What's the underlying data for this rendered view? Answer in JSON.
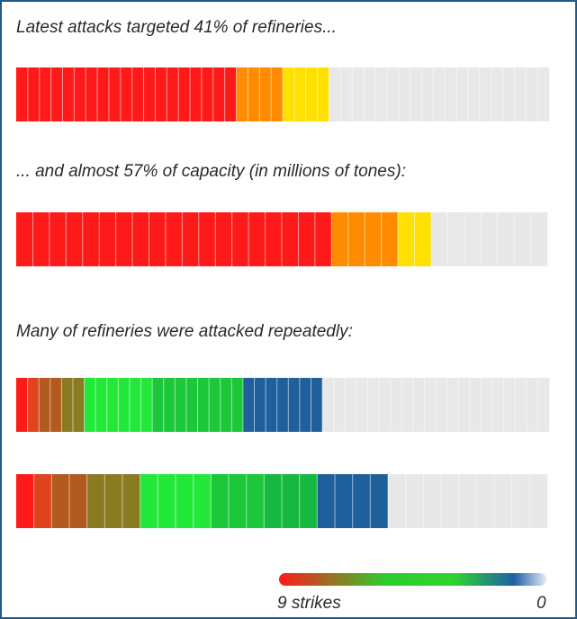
{
  "headings": {
    "h1": "Latest attacks targeted 41% of refineries...",
    "h2": "... and almost 57% of capacity (in millions of tones):",
    "h3": "Many of refineries were attacked repeatedly:"
  },
  "legend": {
    "left_label": "9 strikes",
    "right_label": "0",
    "colors": [
      "#ff1a1a",
      "#2ecc2e",
      "#2fd42f",
      "#1e5fa6",
      "#e6ecf2"
    ]
  },
  "colors": {
    "red": "#ff1a1a",
    "orange": "#ff8c00",
    "yellow": "#ffe000",
    "gray": "#e8e8e8",
    "green_bright": "#22e83a",
    "green_mid": "#1cc83a",
    "blue": "#1f5f9c",
    "frame": "#1f5a8a"
  },
  "chart_data": [
    {
      "type": "bar",
      "title": "Latest attacks targeted 41% of refineries...",
      "segments": [
        {
          "color": "red",
          "count": 19
        },
        {
          "color": "orange",
          "count": 4
        },
        {
          "color": "yellow",
          "count": 4
        },
        {
          "color": "gray",
          "count": 19
        }
      ]
    },
    {
      "type": "bar",
      "title": "... and almost 57% of capacity (in millions of tones):",
      "segments": [
        {
          "color": "red",
          "count": 19
        },
        {
          "color": "orange",
          "count": 4
        },
        {
          "color": "yellow",
          "count": 2
        },
        {
          "color": "gray",
          "count": 7
        }
      ]
    },
    {
      "type": "bar",
      "title": "Many of refineries were attacked repeatedly:",
      "segments": [
        {
          "strikes": 9,
          "count": 1
        },
        {
          "strikes": 7,
          "count": 1
        },
        {
          "strikes": 6,
          "count": 2
        },
        {
          "strikes": 5,
          "count": 2
        },
        {
          "strikes": 4,
          "count": 6
        },
        {
          "strikes": 3,
          "count": 8
        },
        {
          "strikes": 1,
          "count": 7
        },
        {
          "strikes": 0,
          "count": 20
        }
      ]
    },
    {
      "type": "bar",
      "segments": [
        {
          "strikes": 9,
          "count": 1
        },
        {
          "strikes": 7,
          "count": 1
        },
        {
          "strikes": 6,
          "count": 2
        },
        {
          "strikes": 5,
          "count": 3
        },
        {
          "strikes": 4,
          "count": 4
        },
        {
          "strikes": 3,
          "count": 3
        },
        {
          "strikes": 2,
          "count": 3
        },
        {
          "strikes": 1,
          "count": 4
        },
        {
          "strikes": 0,
          "count": 9
        }
      ]
    }
  ]
}
